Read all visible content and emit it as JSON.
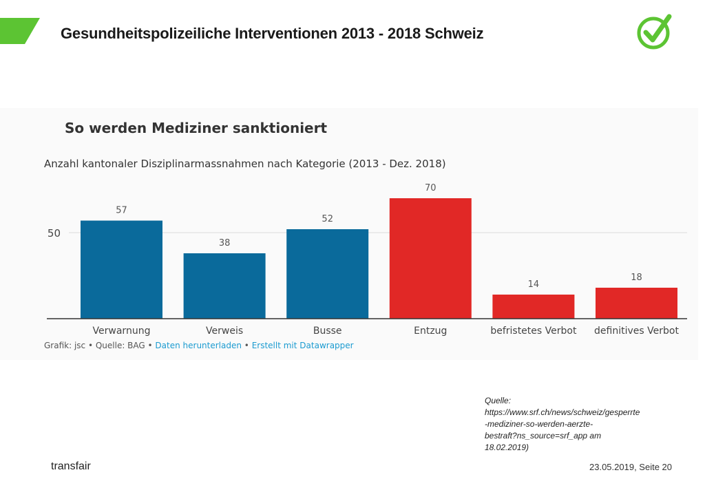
{
  "slide": {
    "title": "Gesundheitspolizeiliche Interventionen 2013 - 2018 Schweiz",
    "accent_color": "#5cc433",
    "logo_icon": "checkmark-circle-icon"
  },
  "chart_data": {
    "type": "bar",
    "title": "So werden Mediziner sanktioniert",
    "subtitle": "Anzahl kantonaler Disziplinarmassnahmen nach Kategorie (2013 - Dez. 2018)",
    "categories": [
      "Verwarnung",
      "Verweis",
      "Busse",
      "Entzug",
      "befristetes Verbot",
      "definitives Verbot"
    ],
    "values": [
      57,
      38,
      52,
      70,
      14,
      18
    ],
    "bar_colors": [
      "#0a6a9b",
      "#0a6a9b",
      "#0a6a9b",
      "#e12826",
      "#e12826",
      "#e12826"
    ],
    "ytick_values": [
      50
    ],
    "ytick_labels": [
      "50"
    ],
    "ylim": [
      0,
      70
    ],
    "grid": true,
    "xlabel": "",
    "ylabel": ""
  },
  "chart_footer": {
    "credit": "Grafik: jsc • Quelle: BAG • ",
    "download_link": "Daten herunterladen",
    "separator": " • ",
    "made_with_link": "Erstellt mit Datawrapper"
  },
  "source": {
    "lines": [
      "Quelle:",
      "https://www.srf.ch/news/schweiz/gesperrte",
      "-mediziner-so-werden-aerzte-",
      "bestraft?ns_source=srf_app am",
      "18.02.2019)"
    ]
  },
  "footer": {
    "company": "transfair",
    "date_page": "23.05.2019, Seite 20"
  }
}
